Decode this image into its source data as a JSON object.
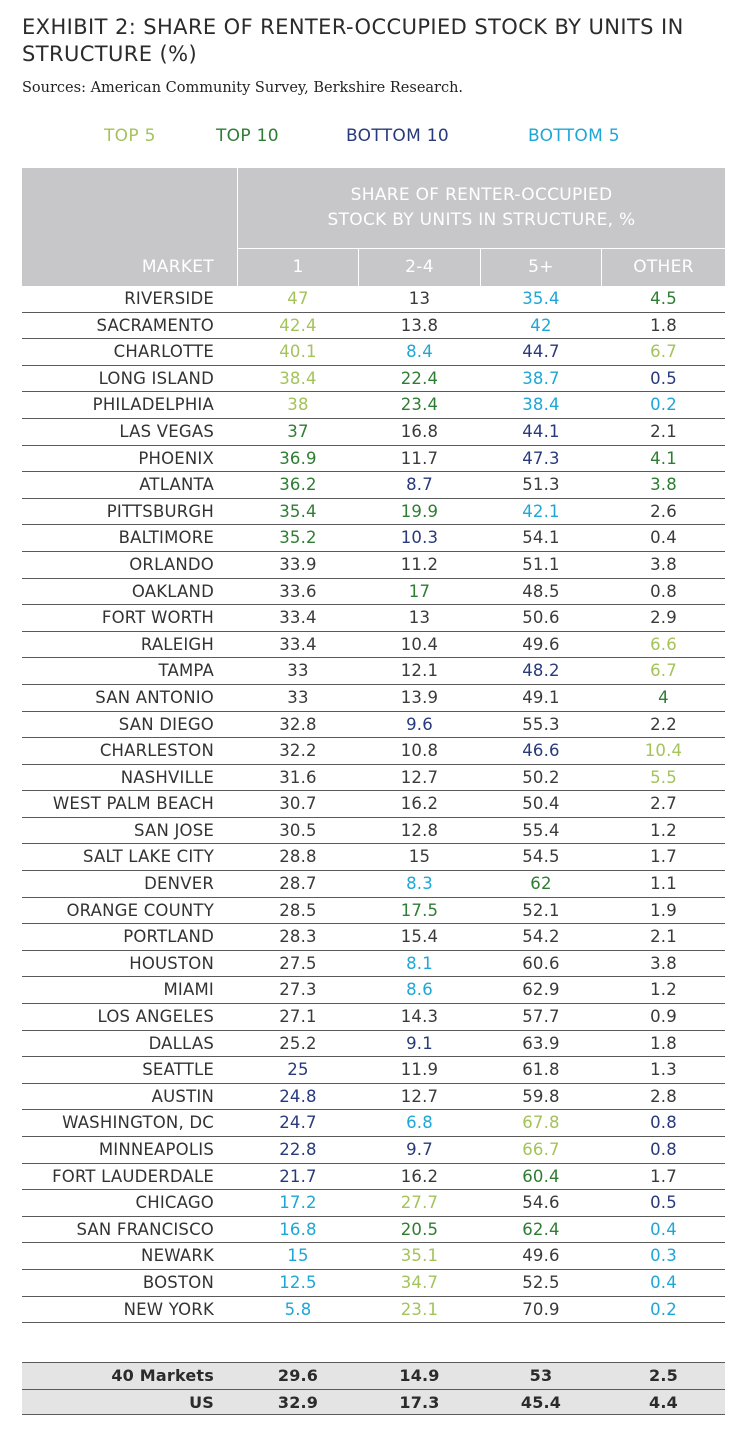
{
  "title": "EXHIBIT 2: SHARE OF RENTER-OCCUPIED STOCK BY UNITS IN STRUCTURE (%)",
  "sources": "Sources: American Community Survey, Berkshire Research.",
  "legend": {
    "top5": "TOP 5",
    "top10": "TOP 10",
    "bottom10": "BOTTOM 10",
    "bottom5": "BOTTOM 5"
  },
  "colors": {
    "top5": "#a4c35a",
    "top10": "#2e7d32",
    "bottom10": "#283a7c",
    "bottom5": "#1ea7d6",
    "header_bg": "#c7c7c9"
  },
  "header": {
    "group": [
      "SHARE OF RENTER-OCCUPIED",
      "STOCK BY UNITS IN STRUCTURE, %"
    ],
    "market": "MARKET",
    "cols": [
      "1",
      "2-4",
      "5+",
      "OTHER"
    ]
  },
  "rows": [
    {
      "market": "RIVERSIDE",
      "v": [
        "47",
        "13",
        "35.4",
        "4.5"
      ],
      "c": [
        "top5",
        "none",
        "bottom5",
        "top10"
      ]
    },
    {
      "market": "SACRAMENTO",
      "v": [
        "42.4",
        "13.8",
        "42",
        "1.8"
      ],
      "c": [
        "top5",
        "none",
        "bottom5",
        "none"
      ]
    },
    {
      "market": "CHARLOTTE",
      "v": [
        "40.1",
        "8.4",
        "44.7",
        "6.7"
      ],
      "c": [
        "top5",
        "bottom5",
        "bottom10",
        "top5"
      ]
    },
    {
      "market": "LONG ISLAND",
      "v": [
        "38.4",
        "22.4",
        "38.7",
        "0.5"
      ],
      "c": [
        "top5",
        "top10",
        "bottom5",
        "bottom10"
      ]
    },
    {
      "market": "PHILADELPHIA",
      "v": [
        "38",
        "23.4",
        "38.4",
        "0.2"
      ],
      "c": [
        "top5",
        "top10",
        "bottom5",
        "bottom5"
      ]
    },
    {
      "market": "LAS VEGAS",
      "v": [
        "37",
        "16.8",
        "44.1",
        "2.1"
      ],
      "c": [
        "top10",
        "none",
        "bottom10",
        "none"
      ]
    },
    {
      "market": "PHOENIX",
      "v": [
        "36.9",
        "11.7",
        "47.3",
        "4.1"
      ],
      "c": [
        "top10",
        "none",
        "bottom10",
        "top10"
      ]
    },
    {
      "market": "ATLANTA",
      "v": [
        "36.2",
        "8.7",
        "51.3",
        "3.8"
      ],
      "c": [
        "top10",
        "bottom10",
        "none",
        "top10"
      ]
    },
    {
      "market": "PITTSBURGH",
      "v": [
        "35.4",
        "19.9",
        "42.1",
        "2.6"
      ],
      "c": [
        "top10",
        "top10",
        "bottom5",
        "none"
      ]
    },
    {
      "market": "BALTIMORE",
      "v": [
        "35.2",
        "10.3",
        "54.1",
        "0.4"
      ],
      "c": [
        "top10",
        "bottom10",
        "none",
        "none"
      ]
    },
    {
      "market": "ORLANDO",
      "v": [
        "33.9",
        "11.2",
        "51.1",
        "3.8"
      ],
      "c": [
        "none",
        "none",
        "none",
        "none"
      ]
    },
    {
      "market": "OAKLAND",
      "v": [
        "33.6",
        "17",
        "48.5",
        "0.8"
      ],
      "c": [
        "none",
        "top10",
        "none",
        "none"
      ]
    },
    {
      "market": "FORT WORTH",
      "v": [
        "33.4",
        "13",
        "50.6",
        "2.9"
      ],
      "c": [
        "none",
        "none",
        "none",
        "none"
      ]
    },
    {
      "market": "RALEIGH",
      "v": [
        "33.4",
        "10.4",
        "49.6",
        "6.6"
      ],
      "c": [
        "none",
        "none",
        "none",
        "top5"
      ]
    },
    {
      "market": "TAMPA",
      "v": [
        "33",
        "12.1",
        "48.2",
        "6.7"
      ],
      "c": [
        "none",
        "none",
        "bottom10",
        "top5"
      ]
    },
    {
      "market": "SAN ANTONIO",
      "v": [
        "33",
        "13.9",
        "49.1",
        "4"
      ],
      "c": [
        "none",
        "none",
        "none",
        "top10"
      ]
    },
    {
      "market": "SAN DIEGO",
      "v": [
        "32.8",
        "9.6",
        "55.3",
        "2.2"
      ],
      "c": [
        "none",
        "bottom10",
        "none",
        "none"
      ]
    },
    {
      "market": "CHARLESTON",
      "v": [
        "32.2",
        "10.8",
        "46.6",
        "10.4"
      ],
      "c": [
        "none",
        "none",
        "bottom10",
        "top5"
      ]
    },
    {
      "market": "NASHVILLE",
      "v": [
        "31.6",
        "12.7",
        "50.2",
        "5.5"
      ],
      "c": [
        "none",
        "none",
        "none",
        "top5"
      ]
    },
    {
      "market": "WEST PALM BEACH",
      "v": [
        "30.7",
        "16.2",
        "50.4",
        "2.7"
      ],
      "c": [
        "none",
        "none",
        "none",
        "none"
      ]
    },
    {
      "market": "SAN JOSE",
      "v": [
        "30.5",
        "12.8",
        "55.4",
        "1.2"
      ],
      "c": [
        "none",
        "none",
        "none",
        "none"
      ]
    },
    {
      "market": "SALT LAKE CITY",
      "v": [
        "28.8",
        "15",
        "54.5",
        "1.7"
      ],
      "c": [
        "none",
        "none",
        "none",
        "none"
      ]
    },
    {
      "market": "DENVER",
      "v": [
        "28.7",
        "8.3",
        "62",
        "1.1"
      ],
      "c": [
        "none",
        "bottom5",
        "top10",
        "none"
      ]
    },
    {
      "market": "ORANGE COUNTY",
      "v": [
        "28.5",
        "17.5",
        "52.1",
        "1.9"
      ],
      "c": [
        "none",
        "top10",
        "none",
        "none"
      ]
    },
    {
      "market": "PORTLAND",
      "v": [
        "28.3",
        "15.4",
        "54.2",
        "2.1"
      ],
      "c": [
        "none",
        "none",
        "none",
        "none"
      ]
    },
    {
      "market": "HOUSTON",
      "v": [
        "27.5",
        "8.1",
        "60.6",
        "3.8"
      ],
      "c": [
        "none",
        "bottom5",
        "none",
        "none"
      ]
    },
    {
      "market": "MIAMI",
      "v": [
        "27.3",
        "8.6",
        "62.9",
        "1.2"
      ],
      "c": [
        "none",
        "bottom5",
        "none",
        "none"
      ]
    },
    {
      "market": "LOS ANGELES",
      "v": [
        "27.1",
        "14.3",
        "57.7",
        "0.9"
      ],
      "c": [
        "none",
        "none",
        "none",
        "none"
      ]
    },
    {
      "market": "DALLAS",
      "v": [
        "25.2",
        "9.1",
        "63.9",
        "1.8"
      ],
      "c": [
        "none",
        "bottom10",
        "none",
        "none"
      ]
    },
    {
      "market": "SEATTLE",
      "v": [
        "25",
        "11.9",
        "61.8",
        "1.3"
      ],
      "c": [
        "bottom10",
        "none",
        "none",
        "none"
      ]
    },
    {
      "market": "AUSTIN",
      "v": [
        "24.8",
        "12.7",
        "59.8",
        "2.8"
      ],
      "c": [
        "bottom10",
        "none",
        "none",
        "none"
      ]
    },
    {
      "market": "WASHINGTON, DC",
      "v": [
        "24.7",
        "6.8",
        "67.8",
        "0.8"
      ],
      "c": [
        "bottom10",
        "bottom5",
        "top5",
        "bottom10"
      ]
    },
    {
      "market": "MINNEAPOLIS",
      "v": [
        "22.8",
        "9.7",
        "66.7",
        "0.8"
      ],
      "c": [
        "bottom10",
        "bottom10",
        "top5",
        "bottom10"
      ]
    },
    {
      "market": "FORT LAUDERDALE",
      "v": [
        "21.7",
        "16.2",
        "60.4",
        "1.7"
      ],
      "c": [
        "bottom10",
        "none",
        "top10",
        "none"
      ]
    },
    {
      "market": "CHICAGO",
      "v": [
        "17.2",
        "27.7",
        "54.6",
        "0.5"
      ],
      "c": [
        "bottom5",
        "top5",
        "none",
        "bottom10"
      ]
    },
    {
      "market": "SAN FRANCISCO",
      "v": [
        "16.8",
        "20.5",
        "62.4",
        "0.4"
      ],
      "c": [
        "bottom5",
        "top10",
        "top10",
        "bottom5"
      ]
    },
    {
      "market": "NEWARK",
      "v": [
        "15",
        "35.1",
        "49.6",
        "0.3"
      ],
      "c": [
        "bottom5",
        "top5",
        "none",
        "bottom5"
      ]
    },
    {
      "market": "BOSTON",
      "v": [
        "12.5",
        "34.7",
        "52.5",
        "0.4"
      ],
      "c": [
        "bottom5",
        "top5",
        "none",
        "bottom5"
      ]
    },
    {
      "market": "NEW YORK",
      "v": [
        "5.8",
        "23.1",
        "70.9",
        "0.2"
      ],
      "c": [
        "bottom5",
        "top5",
        "none",
        "bottom5"
      ]
    }
  ],
  "summary": [
    {
      "market": "40 Markets",
      "v": [
        "29.6",
        "14.9",
        "53",
        "2.5"
      ]
    },
    {
      "market": "US",
      "v": [
        "32.9",
        "17.3",
        "45.4",
        "4.4"
      ]
    }
  ]
}
